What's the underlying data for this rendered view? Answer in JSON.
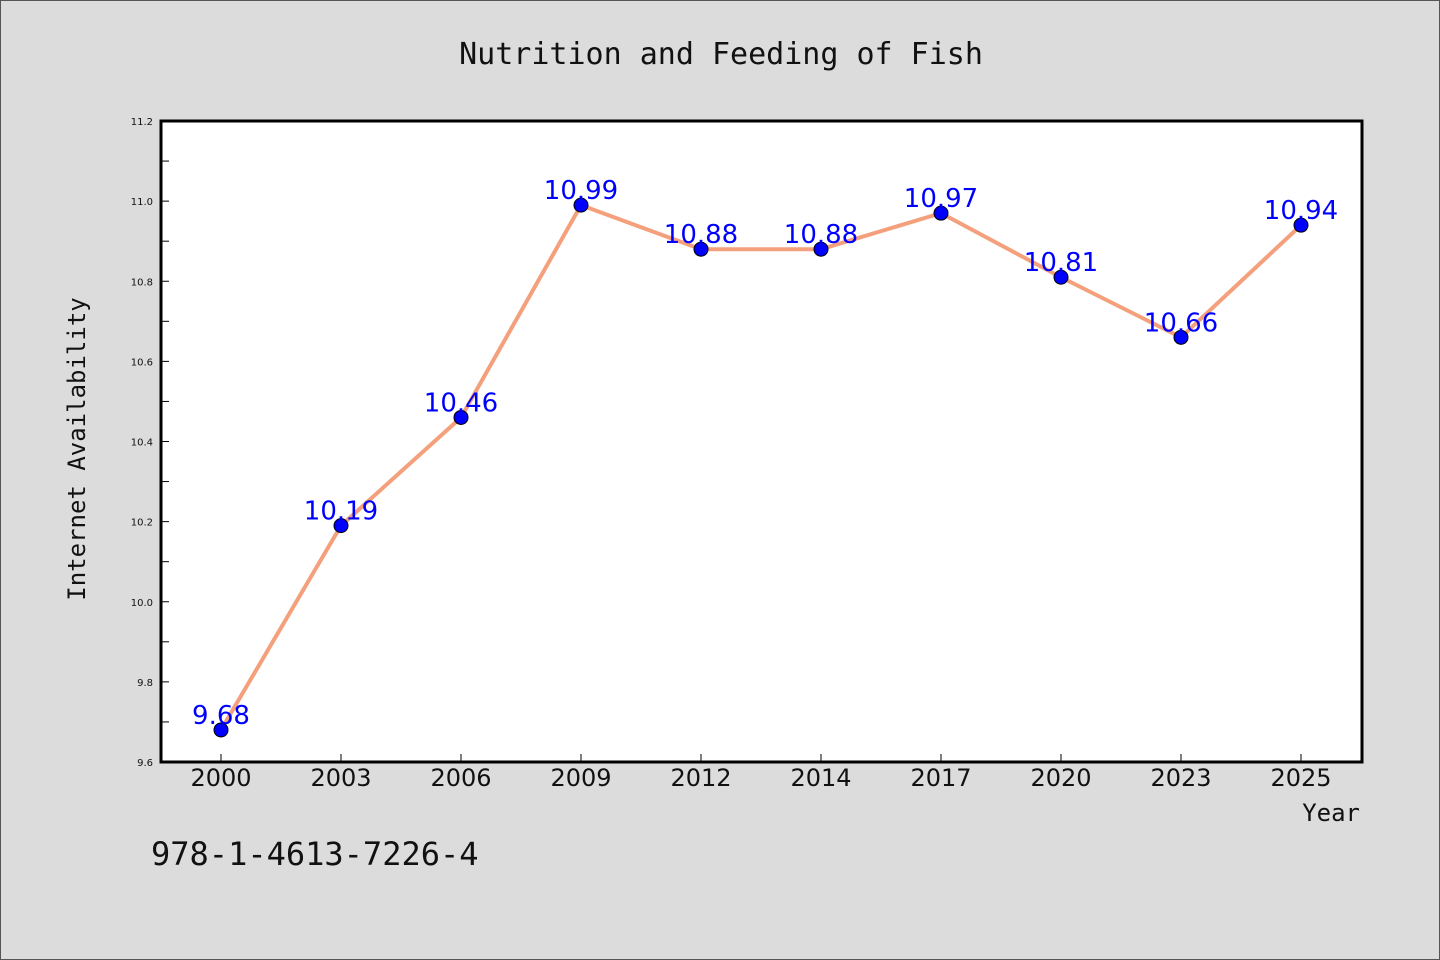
{
  "chart_data": {
    "type": "line",
    "title": "Nutrition and Feeding of Fish",
    "xlabel": "Year",
    "ylabel": "Internet Availability",
    "categories": [
      "2000",
      "2003",
      "2006",
      "2009",
      "2012",
      "2014",
      "2017",
      "2020",
      "2023",
      "2025"
    ],
    "series": [
      {
        "values": [
          9.68,
          10.19,
          10.46,
          10.99,
          10.88,
          10.88,
          10.97,
          10.81,
          10.66,
          10.94
        ]
      }
    ],
    "data_labels": [
      "9.68",
      "10.19",
      "10.46",
      "10.99",
      "10.88",
      "10.88",
      "10.97",
      "10.81",
      "10.66",
      "10.94"
    ],
    "ylim": [
      9.6,
      11.2
    ],
    "yticks": [
      "9.6",
      "9.8",
      "10.0",
      "10.2",
      "10.4",
      "10.6",
      "10.8",
      "11.0",
      "11.2"
    ],
    "grid": false,
    "legend": "none",
    "colors": {
      "line": "#f4a07c",
      "marker": "#0000ff",
      "data_label": "#0000ff",
      "background": "#dcdcdc",
      "plot_background": "#ffffff"
    }
  },
  "footer": {
    "isbn": "978-1-4613-7226-4"
  }
}
